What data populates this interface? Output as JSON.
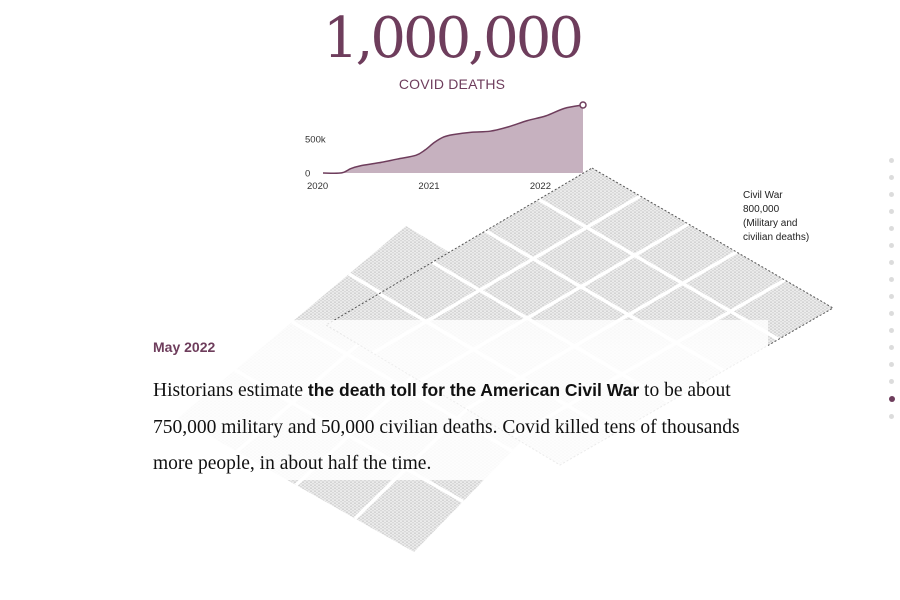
{
  "headline": {
    "number": "1,000,000",
    "label": "COVID DEATHS"
  },
  "colors": {
    "accent": "#6e3d5c",
    "area_fill": "#c6b1bf",
    "grid_gray": "#d9d9d9"
  },
  "chart_data": {
    "type": "area",
    "x": [
      "2020-01",
      "2020-03",
      "2020-04",
      "2020-05",
      "2020-07",
      "2020-09",
      "2020-11",
      "2020-12",
      "2021-01",
      "2021-02",
      "2021-03",
      "2021-05",
      "2021-07",
      "2021-09",
      "2021-11",
      "2022-01",
      "2022-03",
      "2022-05"
    ],
    "values": [
      0,
      2000,
      65000,
      105000,
      150000,
      205000,
      260000,
      340000,
      450000,
      530000,
      565000,
      600000,
      615000,
      680000,
      770000,
      840000,
      950000,
      1000000
    ],
    "xticks": [
      "2020",
      "2021",
      "2022"
    ],
    "yticks": [
      "0",
      "500k"
    ],
    "ytick_values": [
      0,
      500000
    ],
    "xlim": [
      "2020-01",
      "2022-05"
    ],
    "ylim": [
      0,
      1000000
    ],
    "grid": false,
    "marker_last_point": true
  },
  "civil_war": {
    "label_lines": "Civil War\n800,000\n(Military and\ncivilian deaths)"
  },
  "card": {
    "date": "May 2022",
    "text_pre": "Historians estimate ",
    "text_bold": "the death toll for the American Civil War",
    "text_post": " to be about 750,000 military and 50,000 civilian deaths. Covid killed tens of thousands more people, in about half the time."
  },
  "progress_dots": {
    "count": 16,
    "active_index": 14
  }
}
